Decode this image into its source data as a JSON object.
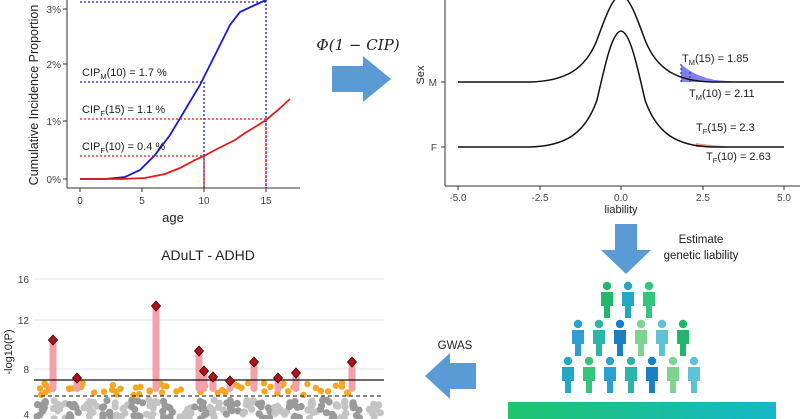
{
  "panel_a": {
    "ylabel": "Cumulative Incidence Proportion",
    "xlabel": "age",
    "yticks": [
      "0%",
      "1%",
      "2%",
      "3%"
    ],
    "xticks": [
      "0",
      "5",
      "10",
      "15"
    ],
    "ann_m10": {
      "pre": "CIP",
      "sub": "M",
      "post": "(10) = 1.7 %"
    },
    "ann_f15": {
      "pre": "CIP",
      "sub": "F",
      "post": "(15) = 1.1 %"
    },
    "ann_f10": {
      "pre": "CIP",
      "sub": "F",
      "post": "(10) = 0.4 %"
    },
    "colors": {
      "male": "#1a1ad6",
      "female": "#e11b1b"
    }
  },
  "formula": "Φ(1 − CIP)",
  "panel_b": {
    "ylabel": "Sex",
    "xlabel": "liability",
    "sex_labels": [
      "M",
      "F"
    ],
    "xticks": [
      "-5.0",
      "-2.5",
      "0.0",
      "2.5",
      "5.0"
    ],
    "ann_m15": {
      "pre": "T",
      "sub": "M",
      "post": "(15) = 1.85"
    },
    "ann_m10": {
      "pre": "T",
      "sub": "M",
      "post": "(10) = 2.11"
    },
    "ann_f15": {
      "pre": "T",
      "sub": "F",
      "post": "(15) = 2.3"
    },
    "ann_f10": {
      "pre": "T",
      "sub": "F",
      "post": "(10) = 2.63"
    }
  },
  "estimate_label": [
    "Estimate",
    "genetic liability"
  ],
  "gwas_label": "GWAS",
  "panel_c": {
    "title": "ADuLT - ADHD",
    "ylabel": "-log10(P)",
    "yticks": [
      "4",
      "8",
      "12",
      "16"
    ]
  },
  "colors": {
    "arrow": "#5b9bd5",
    "gradient_start": "#1fc46e",
    "gradient_end": "#15b7c9"
  }
}
